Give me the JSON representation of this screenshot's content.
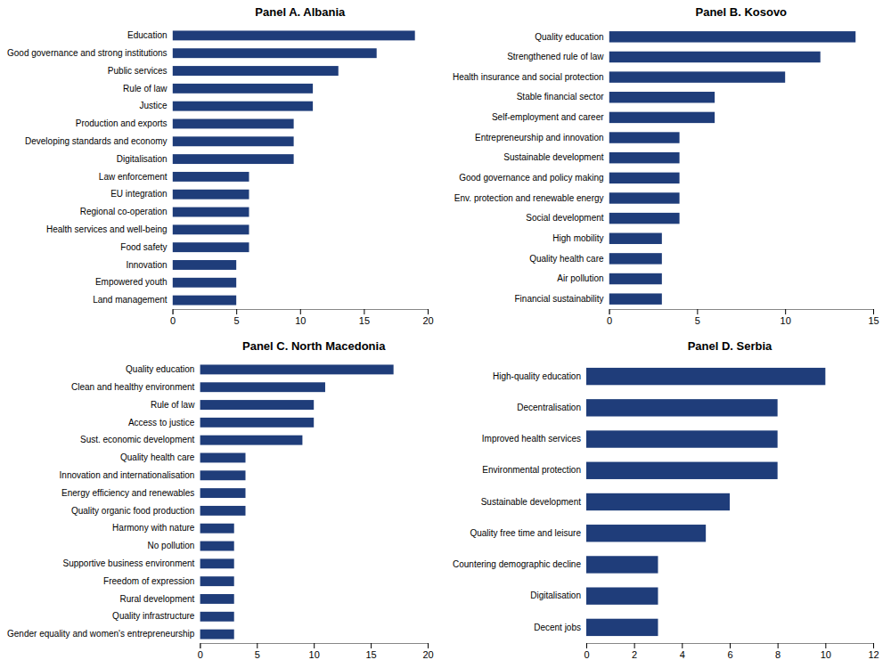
{
  "chart_data": [
    {
      "type": "bar",
      "orientation": "horizontal",
      "title": "Panel A. Albania",
      "categories": [
        "Education",
        "Good governance and strong institutions",
        "Public services",
        "Rule of law",
        "Justice",
        "Production and exports",
        "Developing standards and economy",
        "Digitalisation",
        "Law enforcement",
        "EU integration",
        "Regional co-operation",
        "Health services and well-being",
        "Food safety",
        "Innovation",
        "Empowered youth",
        "Land management"
      ],
      "values": [
        19,
        16,
        13,
        11,
        11,
        9.5,
        9.5,
        9.5,
        6,
        6,
        6,
        6,
        6,
        5,
        5,
        5
      ],
      "color": "#1f3d7a",
      "xlim": [
        0,
        20
      ],
      "xticks": [
        0,
        5,
        10,
        15,
        20
      ],
      "grid": false
    },
    {
      "type": "bar",
      "orientation": "horizontal",
      "title": "Panel B. Kosovo",
      "categories": [
        "Quality education",
        "Strengthened rule of law",
        "Health insurance and social protection",
        "Stable financial sector",
        "Self-employment and career",
        "Entrepreneurship and innovation",
        "Sustainable development",
        "Good governance and policy making",
        "Env. protection and renewable energy",
        "Social development",
        "High mobility",
        "Quality health care",
        "Air pollution",
        "Financial sustainability"
      ],
      "values": [
        14,
        12,
        10,
        6,
        6,
        4,
        4,
        4,
        4,
        4,
        3,
        3,
        3,
        3
      ],
      "color": "#1f3d7a",
      "xlim": [
        0,
        15
      ],
      "xticks": [
        0,
        5,
        10,
        15
      ],
      "grid": false
    },
    {
      "type": "bar",
      "orientation": "horizontal",
      "title": "Panel C. North Macedonia",
      "categories": [
        "Quality education",
        "Clean and healthy environment",
        "Rule of law",
        "Access to justice",
        "Sust. economic development",
        "Quality health care",
        "Innovation and internationalisation",
        "Energy efficiency and renewables",
        "Quality organic food production",
        "Harmony with nature",
        "No pollution",
        "Supportive business environment",
        "Freedom of expression",
        "Rural development",
        "Quality infrastructure",
        "Gender equality and women's entrepreneurship"
      ],
      "values": [
        17,
        11,
        10,
        10,
        9,
        4,
        4,
        4,
        4,
        3,
        3,
        3,
        3,
        3,
        3,
        3
      ],
      "color": "#1f3d7a",
      "xlim": [
        0,
        20
      ],
      "xticks": [
        0,
        5,
        10,
        15,
        20
      ],
      "grid": false
    },
    {
      "type": "bar",
      "orientation": "horizontal",
      "title": "Panel D. Serbia",
      "categories": [
        "High-quality education",
        "Decentralisation",
        "Improved health services",
        "Environmental protection",
        "Sustainable development",
        "Quality free time and leisure",
        "Countering demographic decline",
        "Digitalisation",
        "Decent jobs"
      ],
      "values": [
        10,
        8,
        8,
        8,
        6,
        5,
        3,
        3,
        3
      ],
      "color": "#1f3d7a",
      "xlim": [
        0,
        12
      ],
      "xticks": [
        0,
        2,
        4,
        6,
        8,
        10,
        12
      ],
      "grid": false
    }
  ]
}
